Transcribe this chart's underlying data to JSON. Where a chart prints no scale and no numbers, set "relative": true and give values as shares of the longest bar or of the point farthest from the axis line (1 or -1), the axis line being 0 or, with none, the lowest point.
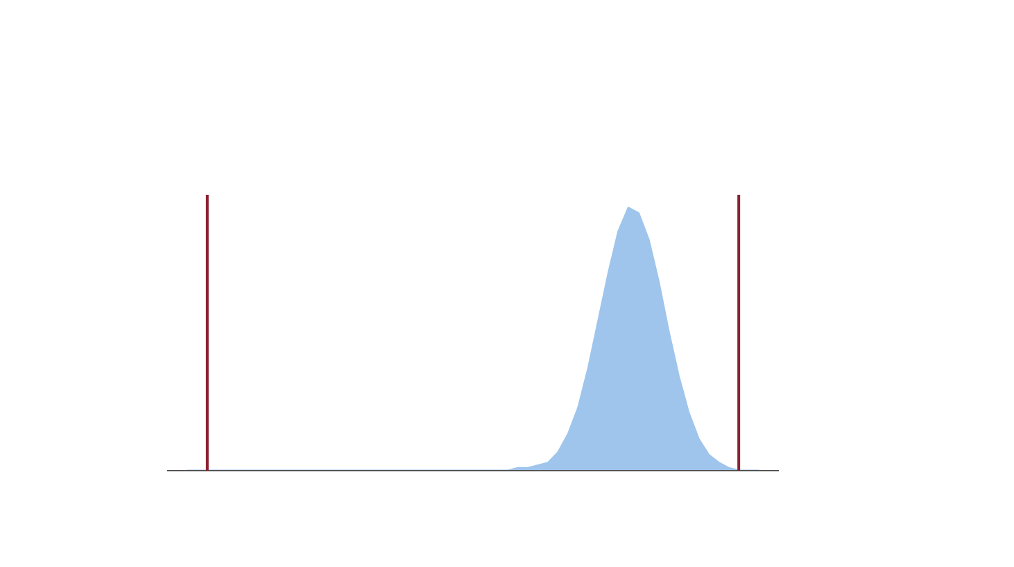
{
  "chart_data": {
    "type": "area",
    "relative": true,
    "categories": [
      null,
      null,
      null,
      null,
      null,
      null,
      null,
      null,
      null,
      null,
      null,
      null,
      null,
      null,
      null,
      null,
      null,
      null,
      null,
      null,
      null,
      null,
      null,
      null,
      null,
      null,
      null,
      null,
      null,
      null,
      null,
      null,
      null,
      null,
      null,
      null,
      null,
      null,
      null,
      null,
      null,
      null,
      null,
      null,
      null,
      null,
      null,
      null,
      null,
      null,
      null,
      null,
      null,
      null,
      null,
      null,
      null,
      null
    ],
    "series": [
      {
        "color": "#9fc5ec",
        "values": [
          0,
          0,
          0,
          0,
          0,
          0,
          0,
          0,
          0,
          0,
          0,
          0,
          0,
          0,
          0,
          0,
          0,
          0,
          0,
          0,
          0,
          0,
          0,
          0,
          0,
          0,
          0,
          0,
          0,
          0,
          0,
          0,
          0,
          0.01,
          0.01,
          0.02,
          0.03,
          0.07,
          0.14,
          0.24,
          0.39,
          0.57,
          0.75,
          0.91,
          1,
          0.98,
          0.88,
          0.72,
          0.53,
          0.36,
          0.22,
          0.12,
          0.06,
          0.03,
          0.01,
          0,
          0,
          0
        ]
      }
    ]
  }
}
